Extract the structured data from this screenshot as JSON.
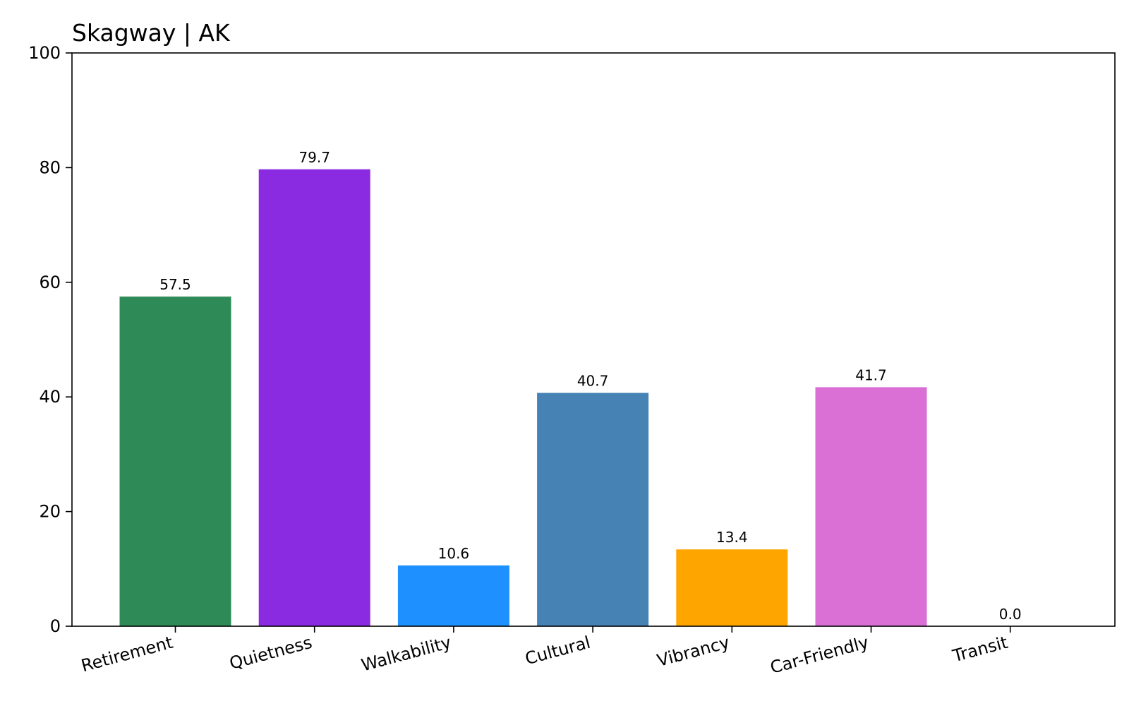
{
  "chart_data": {
    "type": "bar",
    "title": "Skagway | AK",
    "xlabel": "",
    "ylabel": "",
    "categories": [
      "Retirement",
      "Quietness",
      "Walkability",
      "Cultural",
      "Vibrancy",
      "Car-Friendly",
      "Transit"
    ],
    "values": [
      57.5,
      79.7,
      10.6,
      40.7,
      13.4,
      41.7,
      0.0
    ],
    "value_labels": [
      "57.5",
      "79.7",
      "10.6",
      "40.7",
      "13.4",
      "41.7",
      "0.0"
    ],
    "colors": [
      "#2e8b57",
      "#8a2be2",
      "#1e90ff",
      "#4682b4",
      "#ffa500",
      "#da70d6",
      "#ffffff"
    ],
    "ylim": [
      0,
      100
    ],
    "yticks": [
      0,
      20,
      40,
      60,
      80,
      100
    ],
    "grid": false,
    "legend": "none"
  }
}
